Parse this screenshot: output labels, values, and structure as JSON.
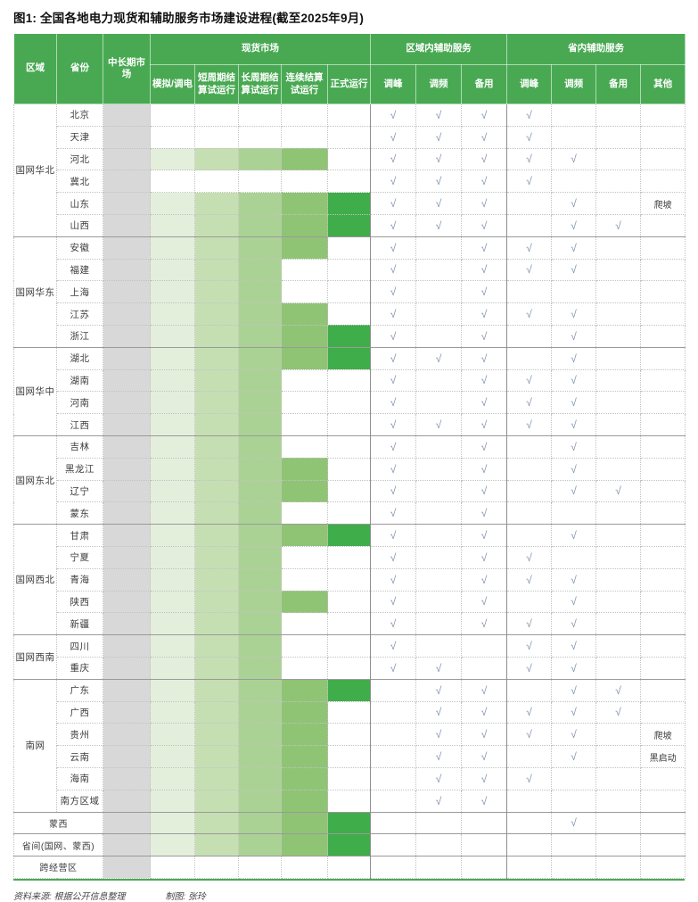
{
  "footer": {
    "source": "资料来源: 根据公开信息整理",
    "credit": "制图: 张玲"
  },
  "check_symbol": "√",
  "colors": {
    "header_green": "#49a953",
    "midlong_gray": "#d8d8d8",
    "stage_colors": [
      "#e4efdb",
      "#c5dfb2",
      "#abd295",
      "#8fc475",
      "#3fad49"
    ],
    "check_color": "#7e91aa",
    "bottom_line_green": "#49a953",
    "region_divider": "#9a9a9a"
  },
  "chart_data": {
    "type": "table",
    "title": "图1: 全国各地电力现货和辅助服务市场建设进程(截至2025年9月)",
    "fixed_columns": [
      "区域",
      "省份",
      "中长期市场"
    ],
    "groups": [
      {
        "label": "现货市场",
        "cols": [
          "模拟/调电",
          "短周期结算试运行",
          "长周期结算试运行",
          "连续结算试运行",
          "正式运行"
        ]
      },
      {
        "label": "区域内辅助服务",
        "cols": [
          "调峰",
          "调频",
          "备用"
        ]
      },
      {
        "label": "省内辅助服务",
        "cols": [
          "调峰",
          "调频",
          "备用",
          "其他"
        ]
      }
    ],
    "check_columns": [
      "region-peak",
      "region-freq",
      "region-reserve",
      "prov-peak",
      "prov-freq",
      "prov-reserve"
    ],
    "spot_stage_note": "spot = number of spot-market stages shaded (1=模拟/调电 … 5=正式运行); all rows have 中长期市场 (gray)",
    "regions": [
      {
        "name": "国网华北",
        "rows": [
          {
            "province": "北京",
            "spot": 0,
            "checks": [
              1,
              1,
              1,
              1,
              0,
              0
            ],
            "other": ""
          },
          {
            "province": "天津",
            "spot": 0,
            "checks": [
              1,
              1,
              1,
              1,
              0,
              0
            ],
            "other": ""
          },
          {
            "province": "河北",
            "spot": 4,
            "checks": [
              1,
              1,
              1,
              1,
              1,
              0
            ],
            "other": ""
          },
          {
            "province": "冀北",
            "spot": 0,
            "checks": [
              1,
              1,
              1,
              1,
              0,
              0
            ],
            "other": ""
          },
          {
            "province": "山东",
            "spot": 5,
            "checks": [
              1,
              1,
              1,
              0,
              1,
              0
            ],
            "other": "爬坡"
          },
          {
            "province": "山西",
            "spot": 5,
            "checks": [
              1,
              1,
              1,
              0,
              1,
              1
            ],
            "other": ""
          }
        ]
      },
      {
        "name": "国网华东",
        "rows": [
          {
            "province": "安徽",
            "spot": 4,
            "checks": [
              1,
              0,
              1,
              1,
              1,
              0
            ],
            "other": ""
          },
          {
            "province": "福建",
            "spot": 3,
            "checks": [
              1,
              0,
              1,
              1,
              1,
              0
            ],
            "other": ""
          },
          {
            "province": "上海",
            "spot": 3,
            "checks": [
              1,
              0,
              1,
              0,
              0,
              0
            ],
            "other": ""
          },
          {
            "province": "江苏",
            "spot": 4,
            "checks": [
              1,
              0,
              1,
              1,
              1,
              0
            ],
            "other": ""
          },
          {
            "province": "浙江",
            "spot": 5,
            "checks": [
              1,
              0,
              1,
              0,
              1,
              0
            ],
            "other": ""
          }
        ]
      },
      {
        "name": "国网华中",
        "rows": [
          {
            "province": "湖北",
            "spot": 5,
            "checks": [
              1,
              1,
              1,
              0,
              1,
              0
            ],
            "other": ""
          },
          {
            "province": "湖南",
            "spot": 3,
            "checks": [
              1,
              0,
              1,
              1,
              1,
              0
            ],
            "other": ""
          },
          {
            "province": "河南",
            "spot": 3,
            "checks": [
              1,
              0,
              1,
              1,
              1,
              0
            ],
            "other": ""
          },
          {
            "province": "江西",
            "spot": 3,
            "checks": [
              1,
              1,
              1,
              1,
              1,
              0
            ],
            "other": ""
          }
        ]
      },
      {
        "name": "国网东北",
        "rows": [
          {
            "province": "吉林",
            "spot": 3,
            "checks": [
              1,
              0,
              1,
              0,
              1,
              0
            ],
            "other": ""
          },
          {
            "province": "黑龙江",
            "spot": 4,
            "checks": [
              1,
              0,
              1,
              0,
              1,
              0
            ],
            "other": ""
          },
          {
            "province": "辽宁",
            "spot": 4,
            "checks": [
              1,
              0,
              1,
              0,
              1,
              1
            ],
            "other": ""
          },
          {
            "province": "蒙东",
            "spot": 3,
            "checks": [
              1,
              0,
              1,
              0,
              0,
              0
            ],
            "other": ""
          }
        ]
      },
      {
        "name": "国网西北",
        "rows": [
          {
            "province": "甘肃",
            "spot": 5,
            "checks": [
              1,
              0,
              1,
              0,
              1,
              0
            ],
            "other": ""
          },
          {
            "province": "宁夏",
            "spot": 3,
            "checks": [
              1,
              0,
              1,
              1,
              0,
              0
            ],
            "other": ""
          },
          {
            "province": "青海",
            "spot": 3,
            "checks": [
              1,
              0,
              1,
              1,
              1,
              0
            ],
            "other": ""
          },
          {
            "province": "陕西",
            "spot": 4,
            "checks": [
              1,
              0,
              1,
              0,
              1,
              0
            ],
            "other": ""
          },
          {
            "province": "新疆",
            "spot": 3,
            "checks": [
              1,
              0,
              1,
              1,
              1,
              0
            ],
            "other": ""
          }
        ]
      },
      {
        "name": "国网西南",
        "rows": [
          {
            "province": "四川",
            "spot": 3,
            "checks": [
              1,
              0,
              0,
              1,
              1,
              0
            ],
            "other": ""
          },
          {
            "province": "重庆",
            "spot": 3,
            "checks": [
              1,
              1,
              0,
              1,
              1,
              0
            ],
            "other": ""
          }
        ]
      },
      {
        "name": "南网",
        "rows": [
          {
            "province": "广东",
            "spot": 5,
            "checks": [
              0,
              1,
              1,
              0,
              1,
              1
            ],
            "other": ""
          },
          {
            "province": "广西",
            "spot": 4,
            "checks": [
              0,
              1,
              1,
              1,
              1,
              1
            ],
            "other": ""
          },
          {
            "province": "贵州",
            "spot": 4,
            "checks": [
              0,
              1,
              1,
              1,
              1,
              0
            ],
            "other": "爬坡"
          },
          {
            "province": "云南",
            "spot": 4,
            "checks": [
              0,
              1,
              1,
              0,
              1,
              0
            ],
            "other": "黑启动"
          },
          {
            "province": "海南",
            "spot": 4,
            "checks": [
              0,
              1,
              1,
              1,
              0,
              0
            ],
            "other": ""
          },
          {
            "province": "南方区域",
            "spot": 4,
            "checks": [
              0,
              1,
              1,
              0,
              0,
              0
            ],
            "other": ""
          }
        ]
      },
      {
        "name": "蒙西",
        "merged": true,
        "rows": [
          {
            "province": "蒙西",
            "spot": 5,
            "checks": [
              0,
              0,
              0,
              0,
              1,
              0
            ],
            "other": ""
          }
        ]
      },
      {
        "name": "省间(国网、蒙西)",
        "merged": true,
        "rows": [
          {
            "province": "省间(国网、蒙西)",
            "spot": 5,
            "checks": [
              0,
              0,
              0,
              0,
              0,
              0
            ],
            "other": ""
          }
        ]
      },
      {
        "name": "跨经营区",
        "merged": true,
        "rows": [
          {
            "province": "跨经营区",
            "spot": 0,
            "checks": [
              0,
              0,
              0,
              0,
              0,
              0
            ],
            "other": ""
          }
        ]
      }
    ]
  }
}
